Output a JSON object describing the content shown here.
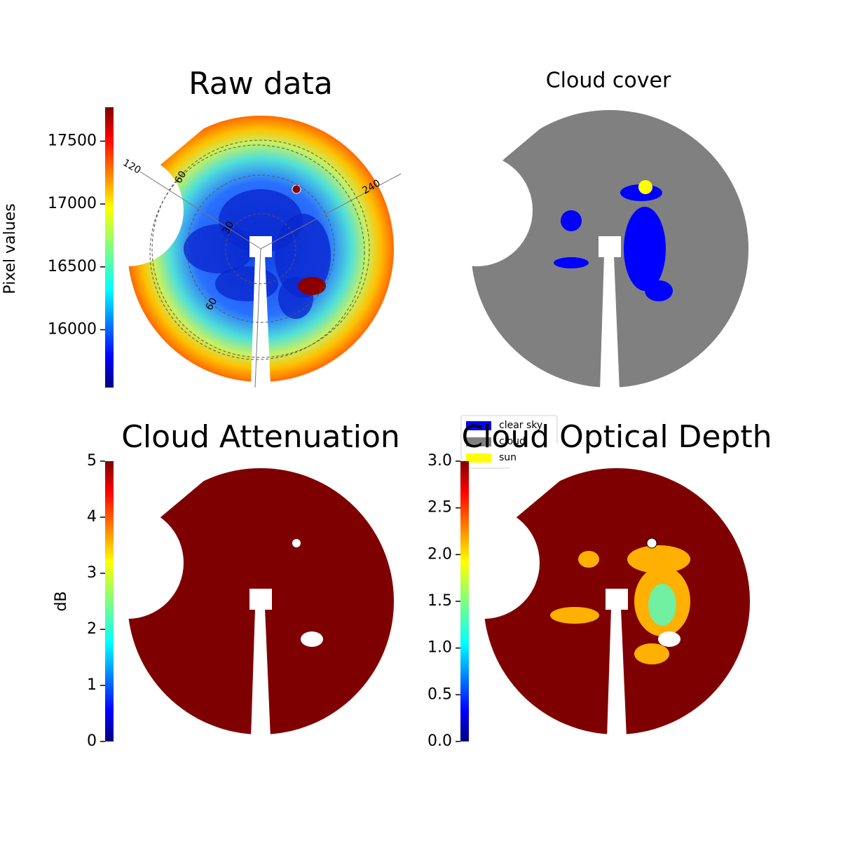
{
  "chart_data": [
    {
      "type": "image",
      "title": "Raw data",
      "colorbar_label": "Pixel values",
      "ylim": [
        15540,
        17770
      ],
      "yticks": [
        16000,
        16500,
        17000,
        17500
      ],
      "annotations": [
        "120",
        "60",
        "240",
        "30",
        "60"
      ]
    },
    {
      "type": "image",
      "title": "Cloud cover",
      "legend": [
        {
          "name": "clear sky",
          "color": "#0000ff"
        },
        {
          "name": "cloud",
          "color": "#808080"
        },
        {
          "name": "sun",
          "color": "#ffff00"
        }
      ]
    },
    {
      "type": "image",
      "title": "Cloud Attenuation",
      "colorbar_label": "dB",
      "ylim": [
        0,
        5
      ],
      "yticks": [
        0,
        1,
        2,
        3,
        4,
        5
      ]
    },
    {
      "type": "image",
      "title": "Cloud Optical Depth",
      "ylim": [
        0,
        3
      ],
      "yticks": [
        {
          "value": 0,
          "label": "0.0"
        },
        {
          "value": 0.5,
          "label": "0.5"
        },
        {
          "value": 1,
          "label": "1.0"
        },
        {
          "value": 1.5,
          "label": "1.5"
        },
        {
          "value": 2,
          "label": "2.0"
        },
        {
          "value": 2.5,
          "label": "2.5"
        },
        {
          "value": 3,
          "label": "3.0"
        }
      ]
    }
  ]
}
